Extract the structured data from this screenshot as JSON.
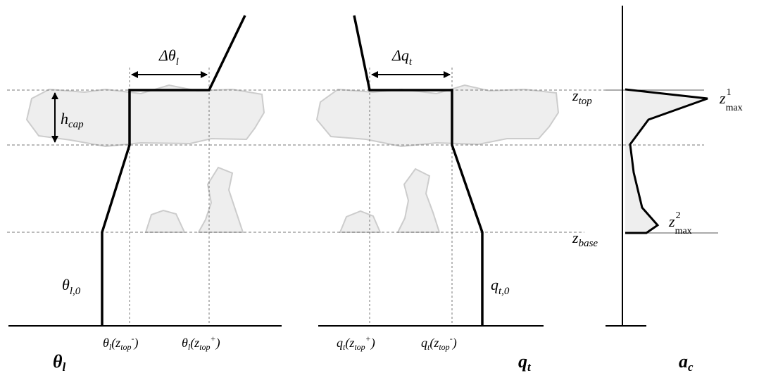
{
  "labels": {
    "delta_theta": "Δθ",
    "delta_theta_sub": "l",
    "delta_q": "Δq",
    "delta_q_sub": "t",
    "h_cap": "h",
    "h_cap_sub": "cap",
    "theta_l0": "θ",
    "theta_l0_sub": "l,0",
    "q_t0": "q",
    "q_t0_sub": "t,0",
    "z_top": "z",
    "z_top_sub": "top",
    "z_base": "z",
    "z_base_sub": "base",
    "z1max": "z",
    "z1max_sub": "max",
    "z1max_sup": "1",
    "z2max": "z",
    "z2max_sub": "max",
    "z2max_sup": "2",
    "theta_minus": "θ",
    "theta_minus_sub1": "l",
    "theta_minus_arg": "(z",
    "theta_minus_sub2": "top",
    "theta_minus_sup": "-",
    "theta_minus_close": ")",
    "theta_plus": "θ",
    "theta_plus_sub1": "l",
    "theta_plus_arg": "(z",
    "theta_plus_sub2": "top",
    "theta_plus_sup": "+",
    "theta_plus_close": ")",
    "q_plus": "q",
    "q_plus_sub1": "t",
    "q_plus_arg": "(z",
    "q_plus_sub2": "top",
    "q_plus_sup": "+",
    "q_plus_close": ")",
    "q_minus": "q",
    "q_minus_sub1": "t",
    "q_minus_arg": "(z",
    "q_minus_sub2": "top",
    "q_minus_sup": "-",
    "q_minus_close": ")",
    "panel_theta": "θ",
    "panel_theta_sub": "l",
    "panel_q": "q",
    "panel_q_sub": "t",
    "panel_a": "a",
    "panel_a_sub": "c"
  },
  "colors": {
    "cloud_fill": "#eeeeee",
    "cloud_stroke": "#cccccc",
    "line": "#000000"
  }
}
